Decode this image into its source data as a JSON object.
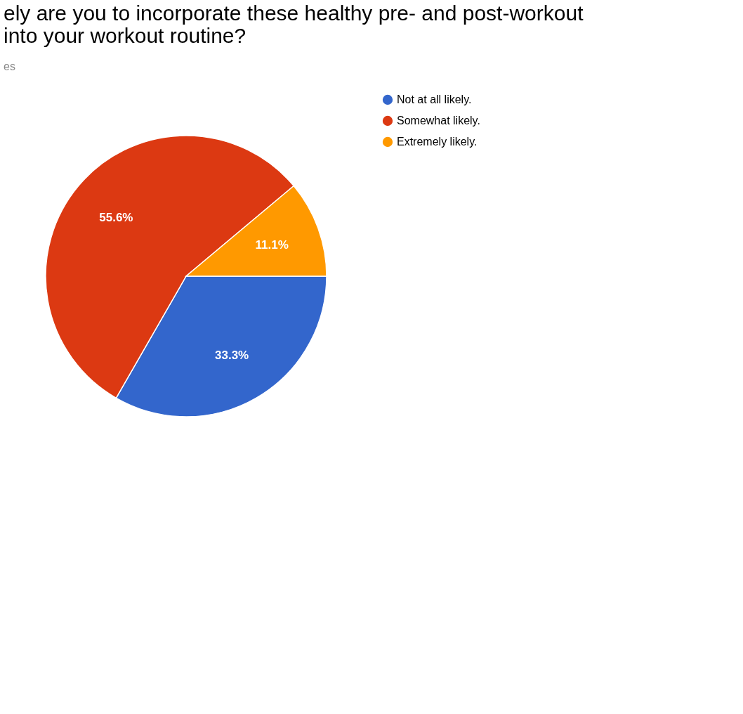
{
  "chart_data": {
    "type": "pie",
    "title": "ely are you to incorporate these healthy pre- and post-workout\ninto your workout routine?",
    "subtitle": "es",
    "categories": [
      "Not at all likely.",
      "Somewhat likely.",
      "Extremely likely."
    ],
    "values": [
      33.3,
      55.6,
      11.1
    ],
    "colors": [
      "#3366cc",
      "#dc3912",
      "#ff9900"
    ],
    "value_labels": [
      "33.3%",
      "55.6%",
      "11.1%"
    ],
    "legend": "right"
  }
}
